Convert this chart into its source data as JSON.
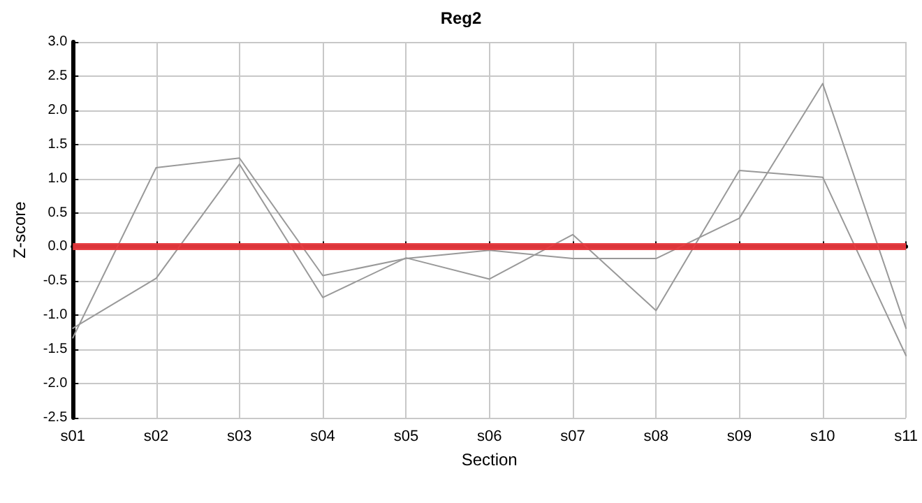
{
  "chart_data": {
    "type": "line",
    "title": "Reg2",
    "xlabel": "Section",
    "ylabel": "Z-score",
    "categories": [
      "s01",
      "s02",
      "s03",
      "s04",
      "s05",
      "s06",
      "s07",
      "s08",
      "s09",
      "s10",
      "s11"
    ],
    "series": [
      {
        "color": "#999999",
        "values": [
          -1.33,
          1.16,
          1.3,
          -0.42,
          -0.17,
          -0.05,
          -0.17,
          -0.17,
          0.42,
          2.39,
          -1.19
        ]
      },
      {
        "color": "#999999",
        "values": [
          -1.19,
          -0.46,
          1.21,
          -0.74,
          -0.16,
          -0.47,
          0.18,
          -0.93,
          1.12,
          1.02,
          -1.59
        ]
      }
    ],
    "ylim": [
      -2.5,
      3
    ],
    "yticks": [
      {
        "value": -2.5,
        "label": "-2.5"
      },
      {
        "value": -2,
        "label": "-2.0"
      },
      {
        "value": -1.5,
        "label": "-1.5"
      },
      {
        "value": -1,
        "label": "-1.0"
      },
      {
        "value": -0.5,
        "label": "-0.5"
      },
      {
        "value": 0,
        "label": "0.0"
      },
      {
        "value": 0.5,
        "label": "0.5"
      },
      {
        "value": 1,
        "label": "1.0"
      },
      {
        "value": 1.5,
        "label": "1.5"
      },
      {
        "value": 2,
        "label": "2.0"
      },
      {
        "value": 2.5,
        "label": "2.5"
      },
      {
        "value": 3,
        "label": "3.0"
      }
    ],
    "ref_lines": [
      {
        "axis": "y",
        "value": 0,
        "color": "#e8383d"
      }
    ],
    "grid": true,
    "marker": "none",
    "line_style": "solid"
  }
}
